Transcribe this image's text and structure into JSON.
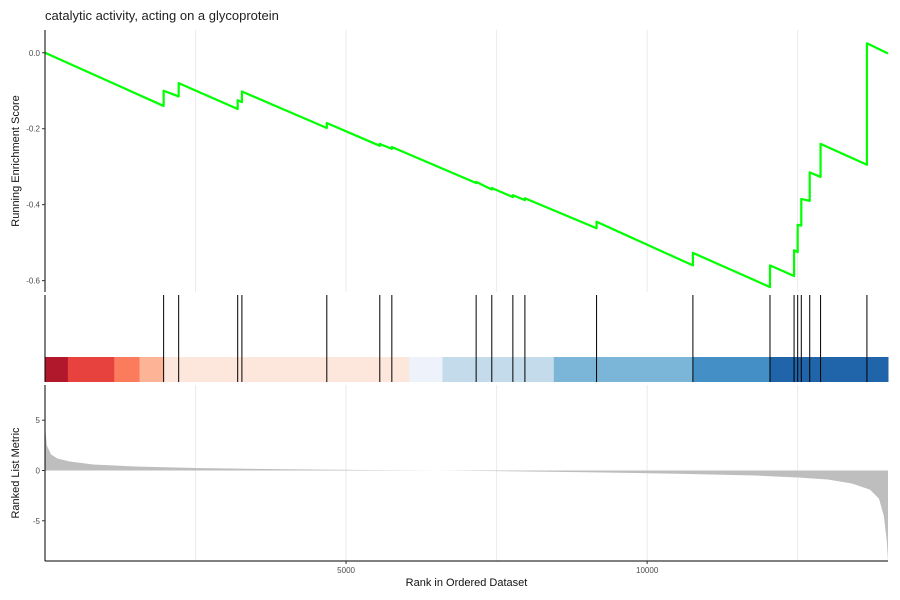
{
  "chart_data": {
    "type": "line",
    "title": "catalytic activity, acting on a glycoprotein",
    "x_max": 14000,
    "panels": [
      {
        "name": "running-enrichment",
        "ylabel": "Running Enrichment Score",
        "ylim": [
          -0.63,
          0.06
        ],
        "yticks": [
          0.0,
          -0.2,
          -0.4,
          -0.6
        ],
        "ytick_labels": [
          "0.0",
          "-0.2",
          "-0.4",
          "-0.6"
        ],
        "line_color": "#00ff00",
        "x": [
          0,
          1970,
          1970,
          2220,
          2220,
          3200,
          3200,
          3270,
          3270,
          4680,
          4680,
          5560,
          5560,
          5760,
          5760,
          7160,
          7160,
          7420,
          7420,
          7770,
          7770,
          7970,
          7970,
          9160,
          9160,
          10760,
          10760,
          12040,
          12040,
          12440,
          12440,
          12500,
          12500,
          12560,
          12560,
          12700,
          12700,
          12880,
          12880,
          13650,
          13650,
          14000
        ],
        "y": [
          0.0,
          -0.14,
          -0.1,
          -0.115,
          -0.08,
          -0.148,
          -0.125,
          -0.13,
          -0.102,
          -0.198,
          -0.185,
          -0.245,
          -0.24,
          -0.253,
          -0.248,
          -0.343,
          -0.34,
          -0.36,
          -0.356,
          -0.38,
          -0.375,
          -0.388,
          -0.383,
          -0.462,
          -0.445,
          -0.56,
          -0.527,
          -0.617,
          -0.56,
          -0.588,
          -0.52,
          -0.525,
          -0.453,
          -0.455,
          -0.385,
          -0.39,
          -0.315,
          -0.327,
          -0.24,
          -0.295,
          0.025,
          -0.002
        ]
      },
      {
        "name": "hits",
        "hit_positions": [
          1970,
          2220,
          3200,
          3270,
          4680,
          5560,
          5760,
          7160,
          7420,
          7770,
          7970,
          9160,
          10760,
          12040,
          12440,
          12500,
          12560,
          12700,
          12880,
          13650
        ],
        "color_bands": [
          {
            "start": 0,
            "end": 380,
            "color": "#b2182b"
          },
          {
            "start": 380,
            "end": 1150,
            "color": "#e8423f"
          },
          {
            "start": 1150,
            "end": 1570,
            "color": "#fb7c5c"
          },
          {
            "start": 1570,
            "end": 1970,
            "color": "#fdb496"
          },
          {
            "start": 1970,
            "end": 6050,
            "color": "#fde6dc"
          },
          {
            "start": 6050,
            "end": 6600,
            "color": "#eef3fb"
          },
          {
            "start": 6600,
            "end": 8450,
            "color": "#c3dbea"
          },
          {
            "start": 8450,
            "end": 10760,
            "color": "#7bb5d8"
          },
          {
            "start": 10760,
            "end": 12040,
            "color": "#4490c6"
          },
          {
            "start": 12040,
            "end": 14000,
            "color": "#2064a9"
          }
        ]
      },
      {
        "name": "ranked-list",
        "ylabel": "Ranked List Metric",
        "xlabel": "Rank in Ordered Dataset",
        "ylim": [
          -9.0,
          8.5
        ],
        "yticks": [
          5,
          0,
          -5
        ],
        "ytick_labels": [
          "5",
          "0",
          "-5"
        ],
        "xticks": [
          5000,
          10000
        ],
        "xtick_labels": [
          "5000",
          "10000"
        ],
        "fill_color": "#bebebe",
        "x": [
          0,
          30,
          100,
          200,
          400,
          800,
          1500,
          2500,
          4000,
          5500,
          6500,
          7500,
          9000,
          10500,
          11800,
          12500,
          13000,
          13400,
          13700,
          13850,
          13930,
          13980,
          14000
        ],
        "y": [
          4.5,
          2.5,
          1.6,
          1.2,
          0.9,
          0.6,
          0.4,
          0.25,
          0.12,
          0.04,
          0.0,
          -0.06,
          -0.18,
          -0.32,
          -0.5,
          -0.7,
          -0.9,
          -1.3,
          -1.9,
          -2.8,
          -4.5,
          -7.0,
          -9.0
        ]
      }
    ]
  }
}
